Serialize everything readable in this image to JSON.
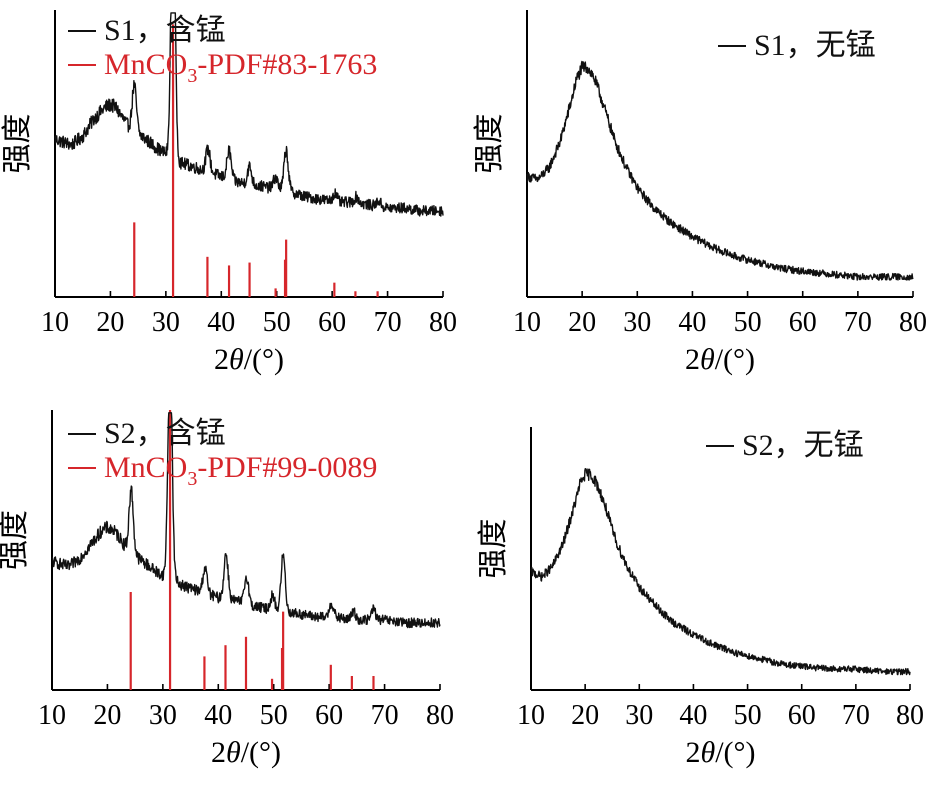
{
  "colors": {
    "xrd": "#111111",
    "reference": "#d6262b",
    "axis": "#000000"
  },
  "chart_data": [
    {
      "type": "line",
      "xlabel_prefix": "2",
      "xlabel_theta": "θ",
      "xlabel_suffix": "/(°)",
      "ylabel": "强度",
      "xlim": [
        10,
        80
      ],
      "xticks": [
        "10",
        "20",
        "30",
        "40",
        "50",
        "60",
        "70",
        "80"
      ],
      "legend": [
        {
          "text": "S1，含锰",
          "color": "#111111"
        },
        {
          "text_main": "MnCO",
          "text_sub": "3",
          "text_tail": "-PDF#83-1763",
          "color": "#d6262b"
        }
      ],
      "xrd_profile": {
        "x": [
          10,
          13,
          15,
          17,
          19,
          20,
          21,
          22,
          23,
          24,
          25,
          27,
          29,
          30,
          31,
          32,
          34,
          37,
          40,
          43,
          46,
          49,
          52,
          55,
          58,
          61,
          64,
          67,
          70,
          73,
          76,
          80
        ],
        "y": [
          0.55,
          0.53,
          0.56,
          0.62,
          0.66,
          0.67,
          0.66,
          0.63,
          0.6,
          0.58,
          0.57,
          0.54,
          0.51,
          0.5,
          0.49,
          0.47,
          0.46,
          0.44,
          0.42,
          0.4,
          0.39,
          0.38,
          0.37,
          0.35,
          0.34,
          0.33,
          0.33,
          0.32,
          0.31,
          0.31,
          0.3,
          0.3
        ]
      },
      "peaks": [
        {
          "x": 24.3,
          "h": 0.16
        },
        {
          "x": 31.3,
          "h": 0.91
        },
        {
          "x": 37.6,
          "h": 0.08
        },
        {
          "x": 41.4,
          "h": 0.1
        },
        {
          "x": 45.1,
          "h": 0.06
        },
        {
          "x": 49.8,
          "h": 0.04
        },
        {
          "x": 51.7,
          "h": 0.14
        },
        {
          "x": 60.5,
          "h": 0.03
        },
        {
          "x": 64.4,
          "h": 0.02
        },
        {
          "x": 68.4,
          "h": 0.02
        }
      ],
      "reference_lines": [
        {
          "x": 24.3,
          "h": 0.26
        },
        {
          "x": 31.3,
          "h": 0.95
        },
        {
          "x": 37.5,
          "h": 0.14
        },
        {
          "x": 41.4,
          "h": 0.11
        },
        {
          "x": 45.1,
          "h": 0.12
        },
        {
          "x": 49.8,
          "h": 0.03
        },
        {
          "x": 51.5,
          "h": 0.13
        },
        {
          "x": 51.7,
          "h": 0.2
        },
        {
          "x": 60.4,
          "h": 0.05
        },
        {
          "x": 64.2,
          "h": 0.02
        },
        {
          "x": 68.2,
          "h": 0.02
        }
      ]
    },
    {
      "type": "line",
      "xlabel_prefix": "2",
      "xlabel_theta": "θ",
      "xlabel_suffix": "/(°)",
      "ylabel": "强度",
      "xlim": [
        10,
        80
      ],
      "xticks": [
        "10",
        "20",
        "30",
        "40",
        "50",
        "60",
        "70",
        "80"
      ],
      "legend": [
        {
          "text": "S1，无锰",
          "color": "#111111"
        }
      ],
      "xrd_profile": {
        "x": [
          10,
          12,
          14,
          16,
          18,
          19,
          20,
          21,
          22,
          23,
          24,
          25,
          26,
          28,
          30,
          33,
          36,
          40,
          44,
          48,
          52,
          56,
          60,
          65,
          70,
          75,
          80
        ],
        "y": [
          0.42,
          0.41,
          0.45,
          0.54,
          0.68,
          0.76,
          0.8,
          0.8,
          0.77,
          0.72,
          0.66,
          0.6,
          0.54,
          0.45,
          0.38,
          0.31,
          0.26,
          0.21,
          0.17,
          0.14,
          0.12,
          0.1,
          0.09,
          0.08,
          0.07,
          0.07,
          0.07
        ]
      },
      "peaks": [],
      "reference_lines": []
    },
    {
      "type": "line",
      "xlabel_prefix": "2",
      "xlabel_theta": "θ",
      "xlabel_suffix": "/(°)",
      "ylabel": "强度",
      "xlim": [
        10,
        80
      ],
      "xticks": [
        "10",
        "20",
        "30",
        "40",
        "50",
        "60",
        "70",
        "80"
      ],
      "legend": [
        {
          "text": "S2，含锰",
          "color": "#111111"
        },
        {
          "text_main": "MnCO",
          "text_sub": "3",
          "text_tail": "-PDF#99-0089",
          "color": "#d6262b"
        }
      ],
      "xrd_profile": {
        "x": [
          10,
          13,
          15,
          17,
          19,
          20,
          21,
          22,
          23,
          24,
          25,
          27,
          29,
          30,
          31,
          32,
          34,
          37,
          40,
          43,
          46,
          49,
          52,
          55,
          58,
          61,
          64,
          67,
          70,
          73,
          76,
          80
        ],
        "y": [
          0.46,
          0.44,
          0.47,
          0.52,
          0.57,
          0.58,
          0.57,
          0.55,
          0.52,
          0.5,
          0.48,
          0.45,
          0.42,
          0.41,
          0.4,
          0.39,
          0.37,
          0.35,
          0.33,
          0.32,
          0.3,
          0.29,
          0.28,
          0.27,
          0.26,
          0.26,
          0.25,
          0.25,
          0.25,
          0.24,
          0.24,
          0.24
        ]
      },
      "peaks": [
        {
          "x": 24.3,
          "h": 0.22
        },
        {
          "x": 31.3,
          "h": 0.8
        },
        {
          "x": 37.6,
          "h": 0.09
        },
        {
          "x": 41.4,
          "h": 0.16
        },
        {
          "x": 45.1,
          "h": 0.1
        },
        {
          "x": 49.8,
          "h": 0.05
        },
        {
          "x": 51.7,
          "h": 0.2
        },
        {
          "x": 60.4,
          "h": 0.05
        },
        {
          "x": 64.4,
          "h": 0.03
        },
        {
          "x": 68.0,
          "h": 0.04
        }
      ],
      "reference_lines": [
        {
          "x": 24.2,
          "h": 0.35
        },
        {
          "x": 31.3,
          "h": 1.0
        },
        {
          "x": 37.5,
          "h": 0.12
        },
        {
          "x": 41.3,
          "h": 0.16
        },
        {
          "x": 45.0,
          "h": 0.19
        },
        {
          "x": 49.7,
          "h": 0.04
        },
        {
          "x": 51.5,
          "h": 0.15
        },
        {
          "x": 51.7,
          "h": 0.28
        },
        {
          "x": 60.3,
          "h": 0.09
        },
        {
          "x": 64.1,
          "h": 0.05
        },
        {
          "x": 68.0,
          "h": 0.05
        }
      ]
    },
    {
      "type": "line",
      "xlabel_prefix": "2",
      "xlabel_theta": "θ",
      "xlabel_suffix": "/(°)",
      "ylabel": "强度",
      "xlim": [
        10,
        80
      ],
      "xticks": [
        "10",
        "20",
        "30",
        "40",
        "50",
        "60",
        "70",
        "80"
      ],
      "legend": [
        {
          "text": "S2，无锰",
          "color": "#111111"
        }
      ],
      "xrd_profile": {
        "x": [
          10,
          12,
          14,
          16,
          18,
          19,
          20,
          21,
          22,
          23,
          24,
          25,
          26,
          28,
          30,
          33,
          36,
          40,
          44,
          48,
          52,
          56,
          60,
          65,
          70,
          75,
          80
        ],
        "y": [
          0.45,
          0.43,
          0.47,
          0.56,
          0.7,
          0.78,
          0.82,
          0.82,
          0.79,
          0.74,
          0.68,
          0.61,
          0.55,
          0.46,
          0.39,
          0.32,
          0.26,
          0.21,
          0.17,
          0.14,
          0.12,
          0.1,
          0.09,
          0.08,
          0.08,
          0.07,
          0.07
        ]
      },
      "peaks": [],
      "reference_lines": []
    }
  ]
}
